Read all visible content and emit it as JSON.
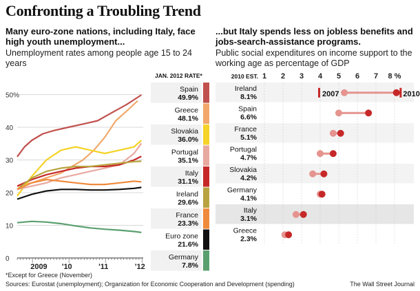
{
  "title": "Confronting a Troubling Trend",
  "left_panel": {
    "subtitle": "Many euro-zone nations, including Italy, face high youth unemployment...",
    "description": "Unemployment rates among people age 15 to 24 years",
    "column_header": "JAN. 2012 RATE*"
  },
  "right_panel": {
    "subtitle": "...but Italy spends less on jobless benefits and jobs-search-assistance programs.",
    "description": "Public social expenditures on income support to the working age as percentage of GDP",
    "column_header": "2010 EST."
  },
  "footnote": "*Except for Greece (November)",
  "sources": "Sources: Eurostat (unemployment); Organization for Economic Cooperation and Development (spending)",
  "credit": "The Wall Street Journal",
  "chart_data": [
    {
      "type": "line",
      "title": "Unemployment rates among people age 15 to 24 years",
      "ylim": [
        0,
        52
      ],
      "y_ticks": [
        0,
        10,
        20,
        30,
        40,
        50
      ],
      "y_tick_labels": [
        "0",
        "10",
        "20",
        "30",
        "40",
        "50%"
      ],
      "x_ticks": [
        2009,
        2010,
        2011,
        2012
      ],
      "x_tick_labels": [
        "2009",
        "'10",
        "'11",
        "'12"
      ],
      "series": [
        {
          "name": "Spain",
          "label": "49.9%",
          "color": "#c0504d",
          "x": [
            2008.6,
            2008.8,
            2009.0,
            2009.3,
            2009.6,
            2010.0,
            2010.4,
            2010.8,
            2011.2,
            2011.6,
            2012.0
          ],
          "values": [
            31,
            34,
            36,
            38,
            39,
            40,
            41,
            42,
            44.5,
            47,
            49.9
          ]
        },
        {
          "name": "Greece",
          "label": "48.1%",
          "color": "#f2a86a",
          "x": [
            2008.6,
            2009.0,
            2009.4,
            2009.8,
            2010.1,
            2010.4,
            2010.7,
            2011.0,
            2011.3,
            2011.6,
            2011.9
          ],
          "values": [
            22,
            23,
            24.5,
            26,
            28,
            30,
            33,
            37,
            42,
            45,
            48.1
          ]
        },
        {
          "name": "Slovakia",
          "label": "36.0%",
          "color": "#f5d327",
          "x": [
            2008.6,
            2009.0,
            2009.4,
            2009.8,
            2010.2,
            2010.6,
            2011.0,
            2011.4,
            2011.8,
            2012.0
          ],
          "values": [
            19,
            25,
            30,
            33,
            34,
            33,
            32,
            33,
            34,
            36
          ]
        },
        {
          "name": "Portugal",
          "label": "35.1%",
          "color": "#e8a9a0",
          "x": [
            2008.6,
            2009.0,
            2009.4,
            2009.8,
            2010.2,
            2010.6,
            2011.0,
            2011.4,
            2011.8,
            2012.0
          ],
          "values": [
            21,
            22,
            23,
            24.5,
            25.5,
            26.5,
            27.5,
            28.5,
            32,
            35.1
          ]
        },
        {
          "name": "Italy",
          "label": "31.1%",
          "color": "#c62828",
          "x": [
            2008.6,
            2009.0,
            2009.4,
            2009.8,
            2010.2,
            2010.6,
            2011.0,
            2011.4,
            2011.8,
            2012.0
          ],
          "values": [
            22,
            24,
            25.5,
            26.5,
            27.5,
            28,
            28,
            28.5,
            30,
            31.1
          ]
        },
        {
          "name": "Ireland",
          "label": "29.6%",
          "color": "#b8a340",
          "x": [
            2008.6,
            2009.0,
            2009.4,
            2009.8,
            2010.2,
            2010.6,
            2011.0,
            2011.4,
            2011.8,
            2012.0
          ],
          "values": [
            21,
            24.5,
            26.5,
            27.5,
            28,
            28,
            28.5,
            29,
            29.5,
            29.6
          ]
        },
        {
          "name": "France",
          "label": "23.3%",
          "color": "#f08a3c",
          "x": [
            2008.6,
            2009.0,
            2009.4,
            2009.8,
            2010.2,
            2010.6,
            2011.0,
            2011.4,
            2011.8,
            2012.0
          ],
          "values": [
            21,
            23,
            24,
            23.5,
            23,
            22.5,
            22.5,
            23,
            23.5,
            23.3
          ]
        },
        {
          "name": "Euro zone",
          "label": "21.6%",
          "color": "#111111",
          "x": [
            2008.6,
            2009.0,
            2009.4,
            2009.8,
            2010.2,
            2010.6,
            2011.0,
            2011.4,
            2011.8,
            2012.0
          ],
          "values": [
            18,
            19.5,
            20.5,
            21,
            21,
            20.8,
            20.8,
            21,
            21.3,
            21.6
          ]
        },
        {
          "name": "Germany",
          "label": "7.8%",
          "color": "#5aa06e",
          "x": [
            2008.6,
            2009.0,
            2009.4,
            2009.8,
            2010.2,
            2010.6,
            2011.0,
            2011.4,
            2011.8,
            2012.0
          ],
          "values": [
            10.8,
            11.2,
            11,
            10.5,
            9.8,
            9.2,
            8.8,
            8.5,
            8.1,
            7.8
          ]
        }
      ]
    },
    {
      "type": "dumbbell",
      "title": "Public social expenditures on income support to the working age as percentage of GDP",
      "xlim": [
        0,
        8
      ],
      "x_ticks": [
        1,
        2,
        3,
        4,
        5,
        6,
        7,
        8
      ],
      "x_tick_labels": [
        "1",
        "2",
        "3",
        "4",
        "5",
        "6",
        "7",
        "8 %"
      ],
      "legend": {
        "start": "2007",
        "end": "2010"
      },
      "rows": [
        {
          "country": "Ireland",
          "value_label": "8.1%",
          "v2007": 5.3,
          "v2010": 8.1
        },
        {
          "country": "Spain",
          "value_label": "6.6%",
          "v2007": 5.0,
          "v2010": 6.6
        },
        {
          "country": "France",
          "value_label": "5.1%",
          "v2007": 4.7,
          "v2010": 5.1
        },
        {
          "country": "Portugal",
          "value_label": "4.7%",
          "v2007": 4.0,
          "v2010": 4.7
        },
        {
          "country": "Slovakia",
          "value_label": "4.2%",
          "v2007": 3.6,
          "v2010": 4.2
        },
        {
          "country": "Germany",
          "value_label": "4.1%",
          "v2007": 4.0,
          "v2010": 4.1
        },
        {
          "country": "Italy",
          "value_label": "3.1%",
          "v2007": 2.7,
          "v2010": 3.1
        },
        {
          "country": "Greece",
          "value_label": "2.3%",
          "v2007": 2.1,
          "v2010": 2.3
        }
      ],
      "highlight": "Italy"
    }
  ]
}
